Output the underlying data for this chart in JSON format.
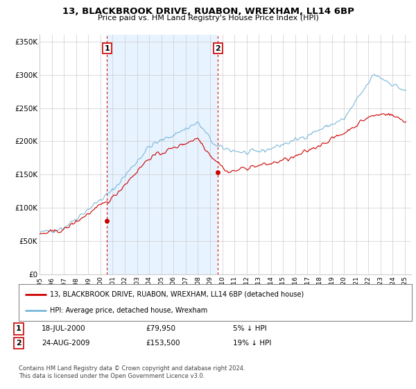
{
  "title": "13, BLACKBROOK DRIVE, RUABON, WREXHAM, LL14 6BP",
  "subtitle": "Price paid vs. HM Land Registry's House Price Index (HPI)",
  "hpi_label": "HPI: Average price, detached house, Wrexham",
  "property_label": "13, BLACKBROOK DRIVE, RUABON, WREXHAM, LL14 6BP (detached house)",
  "hpi_color": "#7ab8d9",
  "property_color": "#cc0000",
  "vline_color": "#cc0000",
  "shade_color": "#ddeeff",
  "sale1_price": 79950,
  "sale1_year": 2000.54,
  "sale2_price": 153500,
  "sale2_year": 2009.64,
  "ylim": [
    0,
    360000
  ],
  "yticks": [
    0,
    50000,
    100000,
    150000,
    200000,
    250000,
    300000,
    350000
  ],
  "ytick_labels": [
    "£0",
    "£50K",
    "£100K",
    "£150K",
    "£200K",
    "£250K",
    "£300K",
    "£350K"
  ],
  "footer": "Contains HM Land Registry data © Crown copyright and database right 2024.\nThis data is licensed under the Open Government Licence v3.0.",
  "background_color": "#ffffff",
  "grid_color": "#cccccc",
  "xlim_left": 1995.0,
  "xlim_right": 2025.5
}
